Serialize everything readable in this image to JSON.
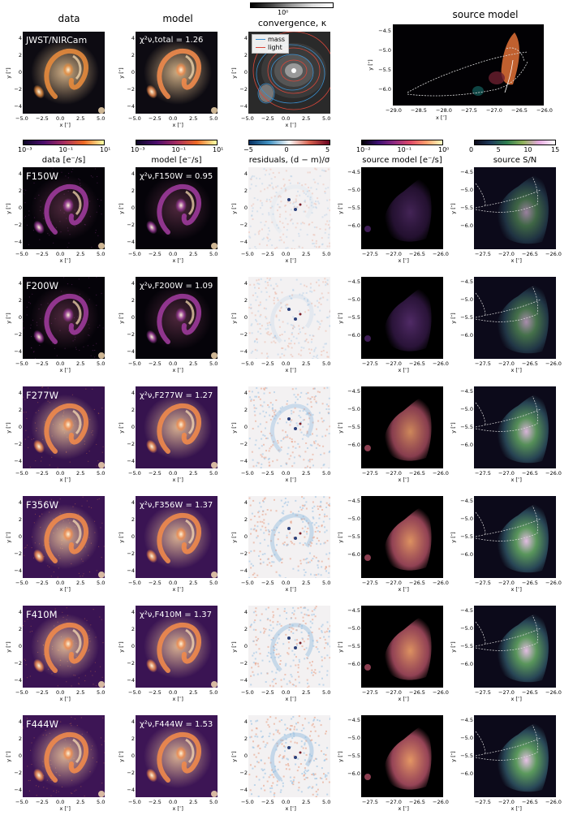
{
  "top_headers": {
    "data": "data",
    "model": "model",
    "source_model": "source model"
  },
  "top_panel_label": "JWST/NIRCam",
  "top_chi": "χ²ν,total = 1.26",
  "convergence": {
    "title": "convergence, κ",
    "cbar_tick": "10⁰",
    "legend": [
      {
        "label": "mass",
        "color": "#3a8fcf"
      },
      {
        "label": "light",
        "color": "#d9473a"
      }
    ]
  },
  "colorbars": {
    "data": {
      "label": "data [e⁻/s]",
      "ticks": [
        "10⁻³",
        "10⁻¹",
        "10¹"
      ]
    },
    "model": {
      "label": "model [e⁻/s]",
      "ticks": [
        "10⁻³",
        "10⁻¹",
        "10¹"
      ]
    },
    "residuals": {
      "label": "residuals, (d − m)/σ",
      "ticks": [
        "−5",
        "0",
        "5"
      ]
    },
    "source": {
      "label": "source model [e⁻/s]",
      "ticks": [
        "10⁻²",
        "10⁻¹",
        "10⁰"
      ]
    },
    "snr": {
      "label": "source S/N",
      "ticks": [
        "0",
        "5",
        "10",
        "15"
      ]
    }
  },
  "axes": {
    "xlabel": "x [″]",
    "ylabel": "y [″]",
    "image_xticks": [
      "−5.0",
      "−2.5",
      "0.0",
      "2.5",
      "5.0"
    ],
    "image_yticks": [
      "4",
      "2",
      "0",
      "−2",
      "−4"
    ],
    "source_xticks": [
      "−27.5",
      "−27.0",
      "−26.5",
      "−26.0"
    ],
    "source_yticks": [
      "−4.5",
      "−5.0",
      "−5.5",
      "−6.0"
    ],
    "top_source_xticks": [
      "−29.0",
      "−28.5",
      "−28.0",
      "−27.5",
      "−27.0",
      "−26.5",
      "−26.0"
    ]
  },
  "rows": [
    {
      "filter": "F150W",
      "chi": "χ²ν,F150W = 0.95",
      "level": 0.15
    },
    {
      "filter": "F200W",
      "chi": "χ²ν,F200W = 1.09",
      "level": 0.3
    },
    {
      "filter": "F277W",
      "chi": "χ²ν,F277W = 1.27",
      "level": 0.75
    },
    {
      "filter": "F356W",
      "chi": "χ²ν,F356W = 1.37",
      "level": 0.85
    },
    {
      "filter": "F410M",
      "chi": "χ²ν,F410M = 1.37",
      "level": 0.85
    },
    {
      "filter": "F444W",
      "chi": "χ²ν,F444W = 1.53",
      "level": 0.9
    }
  ]
}
